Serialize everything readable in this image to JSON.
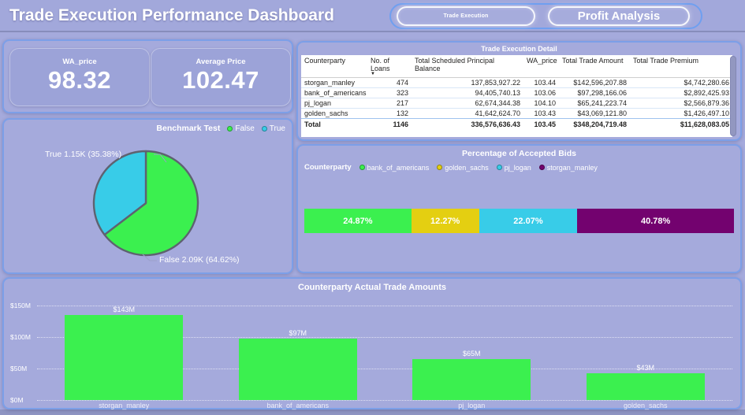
{
  "colors": {
    "green": "#3BF04F",
    "cyan": "#38CCE8",
    "yellow": "#E4CF11",
    "dark_purple": "#73026F",
    "panel_bg": "#A5AADC",
    "panel_border": "#7C9FE8",
    "page_bg": "#8E94C2"
  },
  "header": {
    "title": "Trade Execution Performance Dashboard",
    "nav": [
      {
        "label": "Trade Execution"
      },
      {
        "label": "Profit Analysis"
      }
    ]
  },
  "kpis": [
    {
      "label": "WA_price",
      "value": "98.32"
    },
    {
      "label": "Average Price",
      "value": "102.47"
    }
  ],
  "pie_panel": {
    "legend_title": "Benchmark Test",
    "legend": [
      {
        "label": "False",
        "color": "#3BF04F"
      },
      {
        "label": "True",
        "color": "#38CCE8"
      }
    ],
    "slices": [
      {
        "label": "False",
        "pct": 64.62,
        "color": "#3BF04F",
        "callout": "False 2.09K (64.62%)"
      },
      {
        "label": "True",
        "pct": 35.38,
        "color": "#38CCE8",
        "callout": "True 1.15K (35.38%)"
      }
    ]
  },
  "table_panel": {
    "title": "Trade Execution Detail",
    "columns": [
      "Counterparty",
      "No. of Loans",
      "Total Scheduled Principal Balance",
      "WA_price",
      "Total Trade Amount",
      "Total Trade Premium"
    ],
    "sort_column_index": 1,
    "rows": [
      [
        "storgan_manley",
        "474",
        "137,853,927.22",
        "103.44",
        "$142,596,207.88",
        "$4,742,280.66"
      ],
      [
        "bank_of_americans",
        "323",
        "94,405,740.13",
        "103.06",
        "$97,298,166.06",
        "$2,892,425.93"
      ],
      [
        "pj_logan",
        "217",
        "62,674,344.38",
        "104.10",
        "$65,241,223.74",
        "$2,566,879.36"
      ],
      [
        "golden_sachs",
        "132",
        "41,642,624.70",
        "103.43",
        "$43,069,121.80",
        "$1,426,497.10"
      ]
    ],
    "total": [
      "Total",
      "1146",
      "336,576,636.43",
      "103.45",
      "$348,204,719.48",
      "$11,628,083.05"
    ]
  },
  "stacked_panel": {
    "title": "Percentage of Accepted Bids",
    "legend_title": "Counterparty",
    "segments": [
      {
        "label": "bank_of_americans",
        "pct": 24.87,
        "display": "24.87%",
        "color": "#3BF04F"
      },
      {
        "label": "golden_sachs",
        "pct": 12.27,
        "display": "12.27%",
        "color": "#E4CF11"
      },
      {
        "label": "pj_logan",
        "pct": 22.07,
        "display": "22.07%",
        "color": "#38CCE8"
      },
      {
        "label": "storgan_manley",
        "pct": 40.78,
        "display": "40.78%",
        "color": "#73026F"
      }
    ]
  },
  "bar_panel": {
    "title": "Counterparty Actual Trade Amounts",
    "y_ticks": [
      "$150M",
      "$100M",
      "$50M",
      "$0M"
    ],
    "y_max": 150,
    "bar_color": "#3BF04F",
    "bars": [
      {
        "label": "storgan_manley",
        "value": 143,
        "display": "$143M"
      },
      {
        "label": "bank_of_americans",
        "value": 97,
        "display": "$97M"
      },
      {
        "label": "pj_logan",
        "value": 65,
        "display": "$65M"
      },
      {
        "label": "golden_sachs",
        "value": 43,
        "display": "$43M"
      }
    ]
  },
  "chart_data": [
    {
      "type": "table",
      "title": "Trade Execution Detail",
      "columns": [
        "Counterparty",
        "No. of Loans",
        "Total Scheduled Principal Balance",
        "WA_price",
        "Total Trade Amount",
        "Total Trade Premium"
      ],
      "rows": [
        [
          "storgan_manley",
          474,
          137853927.22,
          103.44,
          142596207.88,
          4742280.66
        ],
        [
          "bank_of_americans",
          323,
          94405740.13,
          103.06,
          97298166.06,
          2892425.93
        ],
        [
          "pj_logan",
          217,
          62674344.38,
          104.1,
          65241223.74,
          2566879.36
        ],
        [
          "golden_sachs",
          132,
          41642624.7,
          103.43,
          43069121.8,
          1426497.1
        ]
      ],
      "total": [
        "Total",
        1146,
        336576636.43,
        103.45,
        348204719.48,
        11628083.05
      ]
    },
    {
      "type": "pie",
      "title": "Benchmark Test",
      "categories": [
        "False",
        "True"
      ],
      "values": [
        64.62,
        35.38
      ],
      "counts": [
        "2.09K",
        "1.15K"
      ],
      "legend_position": "top-right"
    },
    {
      "type": "bar",
      "subtype": "stacked-100",
      "title": "Percentage of Accepted Bids",
      "categories": [
        "bank_of_americans",
        "golden_sachs",
        "pj_logan",
        "storgan_manley"
      ],
      "values": [
        24.87,
        12.27,
        22.07,
        40.78
      ],
      "legend_position": "top-left"
    },
    {
      "type": "bar",
      "title": "Counterparty Actual Trade Amounts",
      "categories": [
        "storgan_manley",
        "bank_of_americans",
        "pj_logan",
        "golden_sachs"
      ],
      "values": [
        143,
        97,
        65,
        43
      ],
      "xlabel": "",
      "ylabel": "",
      "ylim": [
        0,
        150
      ],
      "grid": "dotted-horizontal"
    }
  ]
}
